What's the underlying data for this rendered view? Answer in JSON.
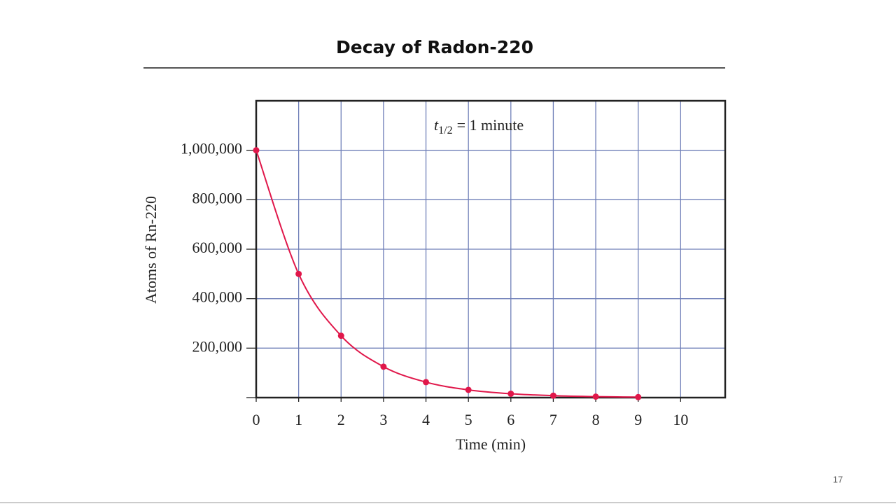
{
  "slide_number": "17",
  "chart_data": {
    "type": "line",
    "title": "Decay of Radon-220",
    "annotation": {
      "variable": "t",
      "subscript": "1/2",
      "text": "= 1 minute"
    },
    "x_label": "Time (min)",
    "y_label": "Atoms of Rn-220",
    "x": [
      0,
      1,
      2,
      3,
      4,
      5,
      6,
      7,
      8,
      9
    ],
    "series": [
      {
        "name": "Rn-220",
        "color": "#e0174a",
        "values": [
          1000000,
          500000,
          250000,
          125000,
          62500,
          31250,
          15625,
          7812.5,
          3906.25,
          1953.125
        ]
      }
    ],
    "xlim": [
      0,
      11.05
    ],
    "xticks": [
      0,
      1,
      2,
      3,
      4,
      5,
      6,
      7,
      8,
      9,
      10
    ],
    "ylim": [
      0,
      1200000
    ],
    "yticks": [
      {
        "value": 200000,
        "label": "200,000"
      },
      {
        "value": 400000,
        "label": "400,000"
      },
      {
        "value": 600000,
        "label": "600,000"
      },
      {
        "value": 800000,
        "label": "800,000"
      },
      {
        "value": 1000000,
        "label": "1,000,000"
      }
    ],
    "grid": true,
    "grid_color": "#6f7fb8",
    "markers": true
  }
}
